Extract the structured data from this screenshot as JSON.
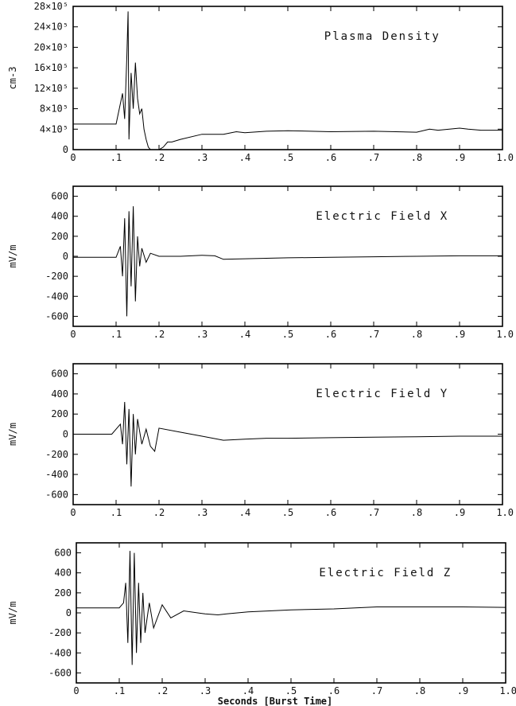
{
  "chart_data": [
    {
      "type": "line",
      "title": "Plasma Density",
      "ylabel": "cm-3",
      "xlabel": "",
      "xlim": [
        0,
        1.0
      ],
      "ylim": [
        0,
        2800000
      ],
      "yticks": [
        0,
        400000,
        800000,
        1200000,
        1600000,
        2000000,
        2400000,
        2800000
      ],
      "ytick_labels": [
        "0",
        "4×10⁵",
        "8×10⁵",
        "12×10⁵",
        "16×10⁵",
        "20×10⁵",
        "24×10⁵",
        "28×10⁵"
      ],
      "xtick_labels": [
        "0",
        ".1",
        ".2",
        ".3",
        ".4",
        ".5",
        ".6",
        ".7",
        ".8",
        ".9",
        "1.0"
      ],
      "x": [
        0,
        0.05,
        0.1,
        0.115,
        0.12,
        0.125,
        0.128,
        0.13,
        0.135,
        0.14,
        0.145,
        0.15,
        0.155,
        0.16,
        0.165,
        0.17,
        0.175,
        0.18,
        0.19,
        0.2,
        0.21,
        0.22,
        0.23,
        0.25,
        0.3,
        0.35,
        0.38,
        0.4,
        0.45,
        0.5,
        0.6,
        0.7,
        0.8,
        0.83,
        0.85,
        0.9,
        0.92,
        0.95,
        1.0
      ],
      "y": [
        500000,
        500000,
        500000,
        1100000,
        600000,
        1800000,
        2700000,
        200000,
        1500000,
        800000,
        1700000,
        1000000,
        700000,
        800000,
        400000,
        200000,
        50000,
        0,
        0,
        0,
        50000,
        150000,
        150000,
        200000,
        300000,
        300000,
        350000,
        330000,
        360000,
        370000,
        350000,
        360000,
        340000,
        400000,
        380000,
        420000,
        400000,
        380000,
        380000
      ]
    },
    {
      "type": "line",
      "title": "Electric Field X",
      "ylabel": "mV/m",
      "xlabel": "",
      "xlim": [
        0,
        1.0
      ],
      "ylim": [
        -700,
        700
      ],
      "yticks": [
        -600,
        -400,
        -200,
        0,
        200,
        400,
        600
      ],
      "ytick_labels": [
        "-600",
        "-400",
        "-200",
        "0",
        "200",
        "400",
        "600"
      ],
      "xtick_labels": [
        "0",
        ".1",
        ".2",
        ".3",
        ".4",
        ".5",
        ".6",
        ".7",
        ".8",
        ".9",
        "1.0"
      ],
      "x": [
        0,
        0.05,
        0.1,
        0.11,
        0.115,
        0.12,
        0.125,
        0.13,
        0.135,
        0.14,
        0.145,
        0.15,
        0.155,
        0.16,
        0.17,
        0.18,
        0.2,
        0.25,
        0.3,
        0.33,
        0.35,
        0.4,
        0.5,
        0.6,
        0.7,
        0.8,
        0.9,
        1.0
      ],
      "y": [
        -10,
        -10,
        -10,
        100,
        -200,
        380,
        -600,
        450,
        -300,
        500,
        -450,
        200,
        -100,
        80,
        -60,
        30,
        0,
        0,
        10,
        5,
        -30,
        -25,
        -15,
        -10,
        -5,
        0,
        5,
        5
      ]
    },
    {
      "type": "line",
      "title": "Electric Field Y",
      "ylabel": "mV/m",
      "xlabel": "",
      "xlim": [
        0,
        1.0
      ],
      "ylim": [
        -700,
        700
      ],
      "yticks": [
        -600,
        -400,
        -200,
        0,
        200,
        400,
        600
      ],
      "ytick_labels": [
        "-600",
        "-400",
        "-200",
        "0",
        "200",
        "400",
        "600"
      ],
      "xtick_labels": [
        "0",
        ".1",
        ".2",
        ".3",
        ".4",
        ".5",
        ".6",
        ".7",
        ".8",
        ".9",
        "1.0"
      ],
      "x": [
        0,
        0.05,
        0.09,
        0.1,
        0.11,
        0.115,
        0.12,
        0.125,
        0.13,
        0.135,
        0.14,
        0.145,
        0.15,
        0.16,
        0.17,
        0.18,
        0.19,
        0.2,
        0.25,
        0.3,
        0.35,
        0.4,
        0.45,
        0.5,
        0.6,
        0.7,
        0.8,
        0.9,
        1.0
      ],
      "y": [
        0,
        0,
        0,
        50,
        100,
        -100,
        320,
        -300,
        250,
        -520,
        200,
        -200,
        150,
        -100,
        50,
        -120,
        -170,
        60,
        20,
        -20,
        -60,
        -50,
        -40,
        -40,
        -35,
        -30,
        -25,
        -20,
        -20
      ]
    },
    {
      "type": "line",
      "title": "Electric Field Z",
      "ylabel": "mV/m",
      "xlabel": "Seconds [Burst Time]",
      "xlim": [
        0,
        1.0
      ],
      "ylim": [
        -700,
        700
      ],
      "yticks": [
        -600,
        -400,
        -200,
        0,
        200,
        400,
        600
      ],
      "ytick_labels": [
        "-600",
        "-400",
        "-200",
        "0",
        "200",
        "400",
        "600"
      ],
      "xtick_labels": [
        "0",
        ".1",
        ".2",
        ".3",
        ".4",
        ".5",
        ".6",
        ".7",
        ".8",
        ".9",
        "1.0"
      ],
      "x": [
        0,
        0.05,
        0.1,
        0.11,
        0.115,
        0.12,
        0.125,
        0.13,
        0.135,
        0.14,
        0.145,
        0.15,
        0.155,
        0.16,
        0.17,
        0.18,
        0.2,
        0.22,
        0.25,
        0.3,
        0.33,
        0.35,
        0.4,
        0.5,
        0.6,
        0.7,
        0.8,
        0.9,
        1.0
      ],
      "y": [
        50,
        50,
        50,
        100,
        300,
        -300,
        620,
        -520,
        600,
        -400,
        300,
        -300,
        200,
        -200,
        100,
        -150,
        80,
        -50,
        20,
        -10,
        -20,
        -10,
        10,
        30,
        40,
        60,
        60,
        60,
        55
      ]
    }
  ]
}
